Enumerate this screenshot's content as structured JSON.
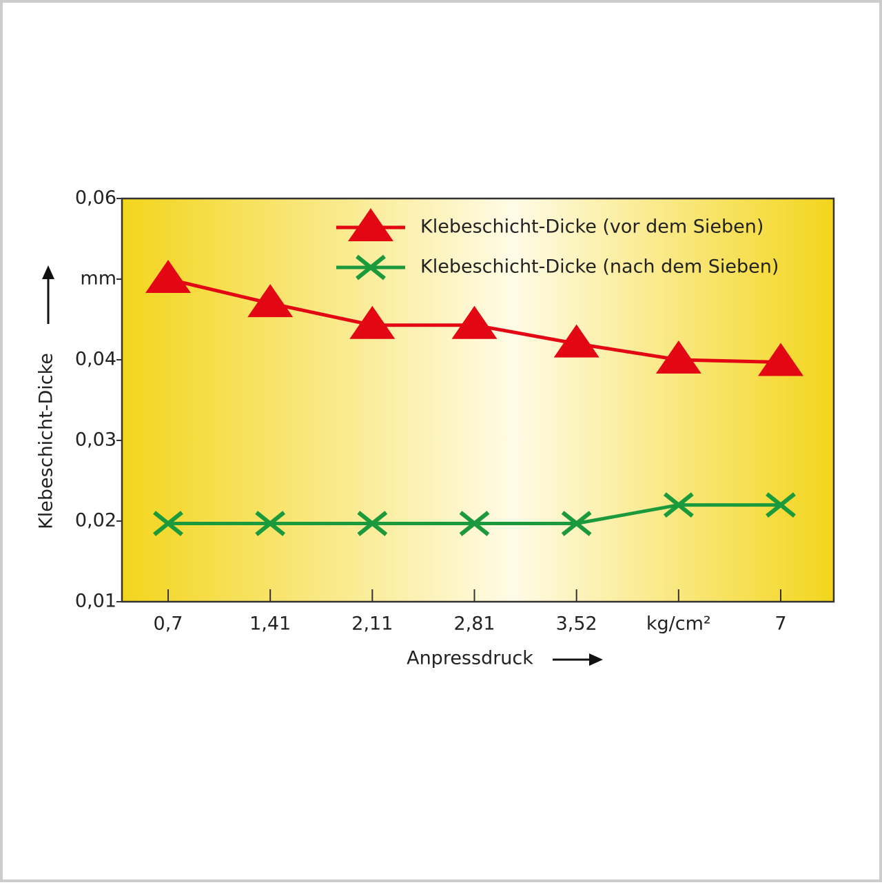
{
  "chart_data": {
    "type": "line",
    "x_label": "Anpressdruck",
    "y_label": "Klebeschicht-Dicke",
    "categories": [
      "0,7",
      "1,41",
      "2,11",
      "2,81",
      "3,52",
      "kg/cm²",
      "7"
    ],
    "series": [
      {
        "name": "Klebeschicht-Dicke (vor dem Sieben)",
        "color": "#e30613",
        "marker": "triangle",
        "values": [
          0.05,
          0.047,
          0.0443,
          0.0443,
          0.042,
          0.04,
          0.0397
        ]
      },
      {
        "name": "Klebeschicht-Dicke (nach dem Sieben)",
        "color": "#1a9a3c",
        "marker": "x",
        "values": [
          0.0197,
          0.0197,
          0.0197,
          0.0197,
          0.0197,
          0.022,
          0.022
        ]
      }
    ],
    "ylim": [
      0.01,
      0.06
    ],
    "yticks": [
      {
        "value": 0.01,
        "label": "0,01"
      },
      {
        "value": 0.02,
        "label": "0,02"
      },
      {
        "value": 0.03,
        "label": "0,03"
      },
      {
        "value": 0.04,
        "label": "0,04"
      },
      {
        "value": 0.05,
        "label": "mm"
      },
      {
        "value": 0.06,
        "label": "0,06"
      }
    ],
    "grid": false
  }
}
